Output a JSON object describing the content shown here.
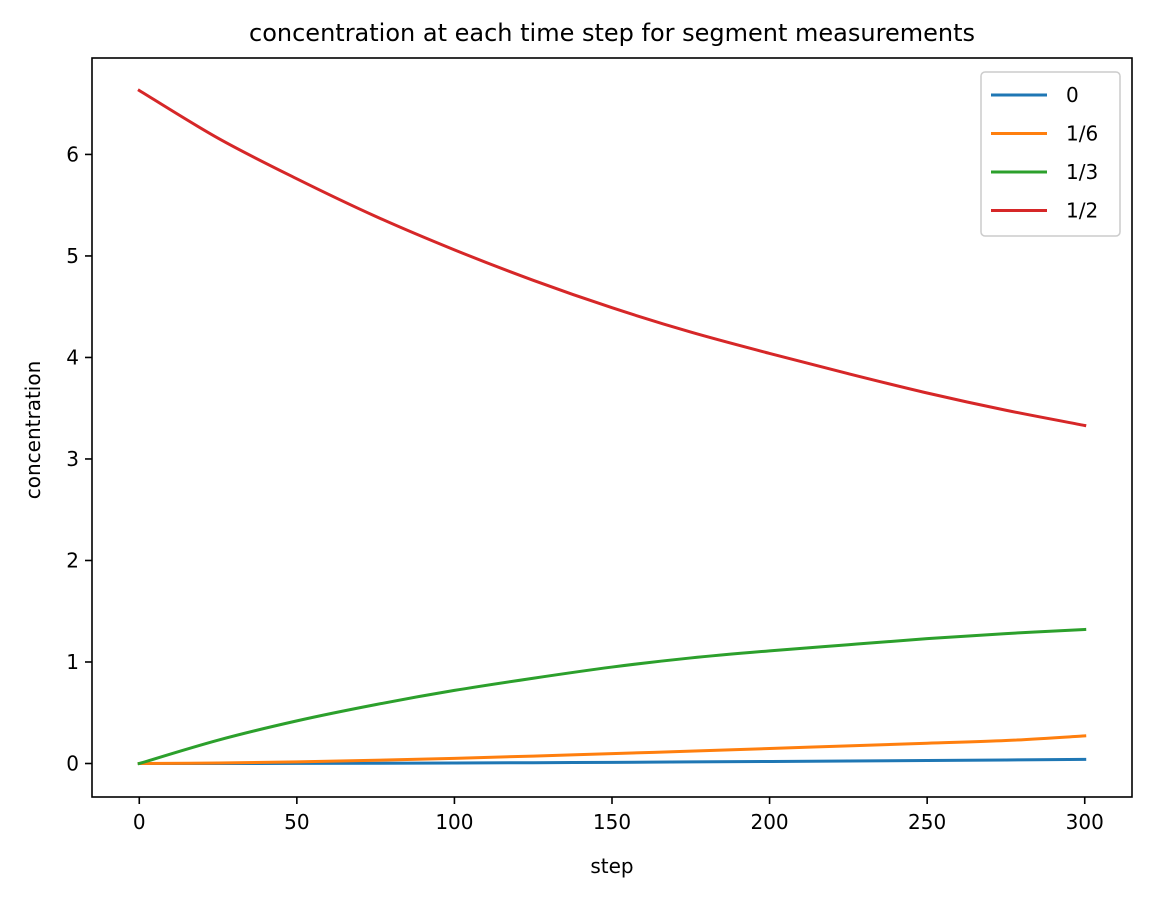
{
  "chart_data": {
    "type": "line",
    "title": "concentration at each time step for segment measurements",
    "xlabel": "step",
    "ylabel": "concentration",
    "xlim": [
      -15,
      315
    ],
    "ylim": [
      -0.33,
      6.95
    ],
    "xticks": [
      0,
      50,
      100,
      150,
      200,
      250,
      300
    ],
    "yticks": [
      0,
      1,
      2,
      3,
      4,
      5,
      6
    ],
    "grid": false,
    "legend_position": "top-right",
    "x": [
      0,
      25,
      50,
      75,
      100,
      125,
      150,
      175,
      200,
      225,
      250,
      275,
      300
    ],
    "series": [
      {
        "name": "0",
        "color": "#1f77b4",
        "values": [
          0.0,
          0.0002,
          0.0011,
          0.0027,
          0.005,
          0.008,
          0.0115,
          0.0155,
          0.0199,
          0.0246,
          0.0296,
          0.0348,
          0.0401
        ]
      },
      {
        "name": "1/6",
        "color": "#ff7f0e",
        "values": [
          0.0,
          0.005,
          0.016,
          0.032,
          0.051,
          0.073,
          0.097,
          0.122,
          0.148,
          0.174,
          0.2,
          0.226,
          0.272
        ]
      },
      {
        "name": "1/3",
        "color": "#2ca02c",
        "values": [
          0.0,
          0.23,
          0.42,
          0.58,
          0.72,
          0.84,
          0.95,
          1.04,
          1.11,
          1.17,
          1.23,
          1.28,
          1.32
        ]
      },
      {
        "name": "1/2",
        "color": "#d62728",
        "values": [
          6.63,
          6.16,
          5.76,
          5.39,
          5.06,
          4.76,
          4.49,
          4.25,
          4.04,
          3.84,
          3.65,
          3.48,
          3.33
        ]
      }
    ]
  }
}
